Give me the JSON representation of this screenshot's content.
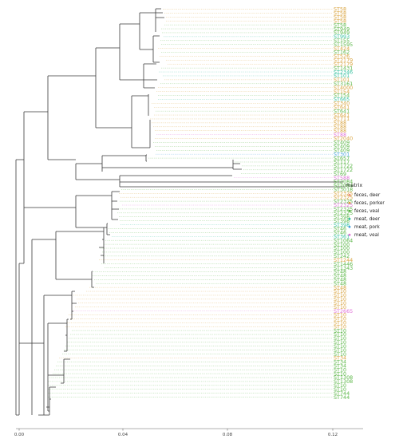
{
  "legend": {
    "title": "matrix",
    "items": [
      {
        "label": "feces, deer",
        "color": "#f08a7a"
      },
      {
        "label": "feces, porker",
        "color": "#d8a23c"
      },
      {
        "label": "feces, veal",
        "color": "#5ab646"
      },
      {
        "label": "meat, deer",
        "color": "#35c0a0"
      },
      {
        "label": "meat, pork",
        "color": "#4aa3df"
      },
      {
        "label": "meat, veal",
        "color": "#e070d8"
      }
    ]
  },
  "axis": {
    "ticks": [
      "0.00",
      "0.04",
      "0.08",
      "0.12"
    ]
  },
  "tips": [
    {
      "label": "ST58",
      "matrix": 1
    },
    {
      "label": "ST58",
      "matrix": 1
    },
    {
      "label": "ST58",
      "matrix": 1
    },
    {
      "label": "ST58",
      "matrix": 1
    },
    {
      "label": "ST58",
      "matrix": 2
    },
    {
      "label": "ST949",
      "matrix": 2
    },
    {
      "label": "ST949",
      "matrix": 2
    },
    {
      "label": "ST993",
      "matrix": 3
    },
    {
      "label": "ST155",
      "matrix": 2
    },
    {
      "label": "ST1595",
      "matrix": 2
    },
    {
      "label": "ST424",
      "matrix": 1
    },
    {
      "label": "ST162",
      "matrix": 2
    },
    {
      "label": "ST526",
      "matrix": 1
    },
    {
      "label": "ST2179",
      "matrix": 1
    },
    {
      "label": "ST2179",
      "matrix": 1
    },
    {
      "label": "ST1431",
      "matrix": 2
    },
    {
      "label": "ST2346",
      "matrix": 3
    },
    {
      "label": "ST101",
      "matrix": 3
    },
    {
      "label": "ST101",
      "matrix": 1
    },
    {
      "label": "ST3161",
      "matrix": 2
    },
    {
      "label": "ST4000",
      "matrix": 1
    },
    {
      "label": "ST154",
      "matrix": 1
    },
    {
      "label": "ST154",
      "matrix": 2
    },
    {
      "label": "ST665",
      "matrix": 3
    },
    {
      "label": "ST340",
      "matrix": 1
    },
    {
      "label": "ST641",
      "matrix": 1
    },
    {
      "label": "ST641",
      "matrix": 2
    },
    {
      "label": "ST641",
      "matrix": 1
    },
    {
      "label": "ST711",
      "matrix": 1
    },
    {
      "label": "ST88",
      "matrix": 1
    },
    {
      "label": "ST88",
      "matrix": 1
    },
    {
      "label": "ST88",
      "matrix": 1
    },
    {
      "label": "ST88",
      "matrix": 5
    },
    {
      "label": "ST2040",
      "matrix": 1
    },
    {
      "label": "ST409",
      "matrix": 2
    },
    {
      "label": "ST409",
      "matrix": 2
    },
    {
      "label": "ST409",
      "matrix": 2
    },
    {
      "label": "ST301",
      "matrix": 4
    },
    {
      "label": "ST657",
      "matrix": 2
    },
    {
      "label": "ST117",
      "matrix": 2
    },
    {
      "label": "ST1722",
      "matrix": 2
    },
    {
      "label": "ST1722",
      "matrix": 2
    },
    {
      "label": "ST69",
      "matrix": 2
    },
    {
      "label": "ST588",
      "matrix": 5
    },
    {
      "label": "ST2084",
      "matrix": 2
    },
    {
      "label": "ST2084",
      "matrix": 2
    },
    {
      "label": "ST3018",
      "matrix": 2
    },
    {
      "label": "ST2325",
      "matrix": 1
    },
    {
      "label": "ST2325",
      "matrix": 1
    },
    {
      "label": "ST2325",
      "matrix": 2
    },
    {
      "label": "ST2325",
      "matrix": 5
    },
    {
      "label": "ST2325",
      "matrix": 2
    },
    {
      "label": "ST2325",
      "matrix": 2
    },
    {
      "label": "ST398",
      "matrix": 2
    },
    {
      "label": "ST398",
      "matrix": 2
    },
    {
      "label": "ST398",
      "matrix": 3
    },
    {
      "label": "ST46",
      "matrix": 2
    },
    {
      "label": "ST46",
      "matrix": 2
    },
    {
      "label": "ST361",
      "matrix": 3
    },
    {
      "label": "ST1064",
      "matrix": 2
    },
    {
      "label": "ST100",
      "matrix": 2
    },
    {
      "label": "ST100",
      "matrix": 2
    },
    {
      "label": "ST100",
      "matrix": 2
    },
    {
      "label": "ST242",
      "matrix": 2
    },
    {
      "label": "ST1244",
      "matrix": 1
    },
    {
      "label": "ST1446",
      "matrix": 2
    },
    {
      "label": "ST1343",
      "matrix": 2
    },
    {
      "label": "ST48",
      "matrix": 2
    },
    {
      "label": "ST48",
      "matrix": 2
    },
    {
      "label": "ST48",
      "matrix": 2
    },
    {
      "label": "ST48",
      "matrix": 2
    },
    {
      "label": "ST48",
      "matrix": 1
    },
    {
      "label": "ST10",
      "matrix": 1
    },
    {
      "label": "ST10",
      "matrix": 1
    },
    {
      "label": "ST10",
      "matrix": 1
    },
    {
      "label": "ST10",
      "matrix": 1
    },
    {
      "label": "ST10",
      "matrix": 1
    },
    {
      "label": "ST2665",
      "matrix": 5
    },
    {
      "label": "ST10",
      "matrix": 1
    },
    {
      "label": "ST10",
      "matrix": 1
    },
    {
      "label": "ST10",
      "matrix": 1
    },
    {
      "label": "ST10",
      "matrix": 1
    },
    {
      "label": "ST10",
      "matrix": 2
    },
    {
      "label": "ST10",
      "matrix": 2
    },
    {
      "label": "ST10",
      "matrix": 2
    },
    {
      "label": "ST10",
      "matrix": 2
    },
    {
      "label": "ST10",
      "matrix": 2
    },
    {
      "label": "ST10",
      "matrix": 2
    },
    {
      "label": "ST10",
      "matrix": 2
    },
    {
      "label": "ST34",
      "matrix": 1
    },
    {
      "label": "ST34",
      "matrix": 2
    },
    {
      "label": "ST34",
      "matrix": 2
    },
    {
      "label": "ST10",
      "matrix": 2
    },
    {
      "label": "ST10",
      "matrix": 2
    },
    {
      "label": "ST1308",
      "matrix": 2
    },
    {
      "label": "ST1308",
      "matrix": 2
    },
    {
      "label": "ST10",
      "matrix": 2
    },
    {
      "label": "ST10",
      "matrix": 2
    },
    {
      "label": "ST744",
      "matrix": 2
    },
    {
      "label": "ST744",
      "matrix": 2
    }
  ]
}
